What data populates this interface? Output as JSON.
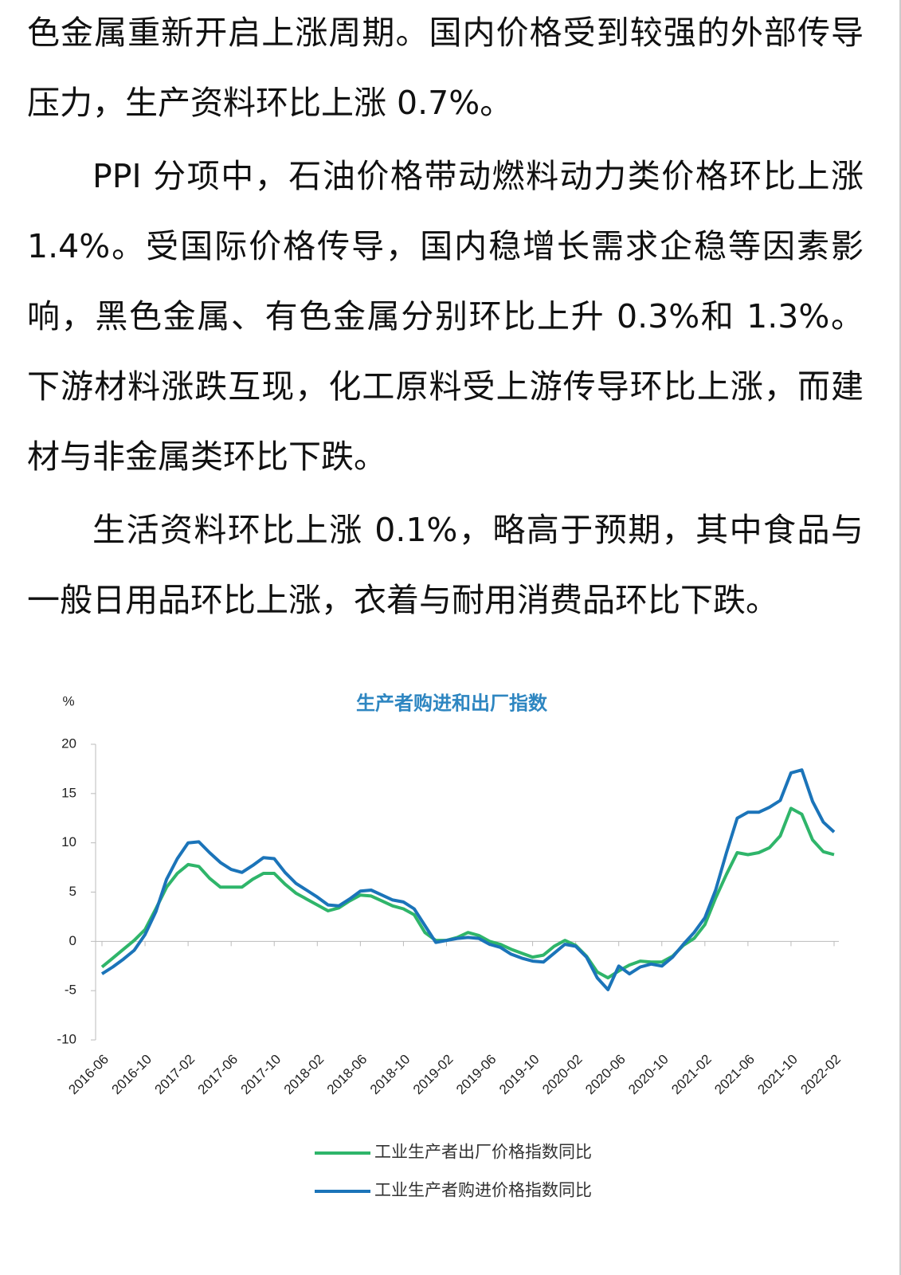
{
  "paragraphs": [
    {
      "text": "色金属重新开启上涨周期。国内价格受到较强的外部传导压力，生产资料环比上涨 0.7%。",
      "indent": false
    },
    {
      "text": "PPI 分项中，石油价格带动燃料动力类价格环比上涨 1.4%。受国际价格传导，国内稳增长需求企稳等因素影响，黑色金属、有色金属分别环比上升 0.3%和 1.3%。下游材料涨跌互现，化工原料受上游传导环比上涨，而建材与非金属类环比下跌。",
      "indent": true
    },
    {
      "text": "生活资料环比上涨 0.1%，略高于预期，其中食品与一般日用品环比上涨，衣着与耐用消费品环比下跌。",
      "indent": true
    }
  ],
  "chart_data": {
    "type": "line",
    "title": "生产者购进和出厂指数",
    "y_label": "%",
    "categories": [
      "2016-06",
      null,
      null,
      null,
      "2016-10",
      null,
      null,
      null,
      "2017-02",
      null,
      null,
      null,
      "2017-06",
      null,
      null,
      null,
      "2017-10",
      null,
      null,
      null,
      "2018-02",
      null,
      null,
      null,
      "2018-06",
      null,
      null,
      null,
      "2018-10",
      null,
      null,
      null,
      "2019-02",
      null,
      null,
      null,
      "2019-06",
      null,
      null,
      null,
      "2019-10",
      null,
      null,
      null,
      "2020-02",
      null,
      null,
      null,
      "2020-06",
      null,
      null,
      null,
      "2020-10",
      null,
      null,
      null,
      "2021-02",
      null,
      null,
      null,
      "2021-06",
      null,
      null,
      null,
      "2021-10",
      null,
      null,
      null,
      "2022-02"
    ],
    "series": [
      {
        "name": "工业生产者出厂价格指数同比",
        "color": "#2fb56a",
        "values": [
          -2.6,
          -1.7,
          -0.8,
          0.1,
          1.2,
          3.3,
          5.5,
          6.9,
          7.8,
          7.6,
          6.4,
          5.5,
          5.5,
          5.5,
          6.3,
          6.9,
          6.9,
          5.8,
          4.9,
          4.3,
          3.7,
          3.1,
          3.4,
          4.1,
          4.7,
          4.6,
          4.1,
          3.6,
          3.3,
          2.7,
          0.9,
          0.1,
          0.1,
          0.4,
          0.9,
          0.6,
          0.0,
          -0.3,
          -0.8,
          -1.2,
          -1.6,
          -1.4,
          -0.5,
          0.1,
          -0.4,
          -1.5,
          -3.1,
          -3.7,
          -3.0,
          -2.4,
          -2.0,
          -2.1,
          -2.1,
          -1.5,
          -0.4,
          0.3,
          1.7,
          4.4,
          6.8,
          9.0,
          8.8,
          9.0,
          9.5,
          10.7,
          13.5,
          12.9,
          10.3,
          9.1,
          8.8
        ]
      },
      {
        "name": "工业生产者购进价格指数同比",
        "color": "#1b74b9",
        "values": [
          -3.3,
          -2.6,
          -1.8,
          -0.9,
          0.7,
          3.0,
          6.3,
          8.4,
          10.0,
          10.1,
          9.0,
          8.0,
          7.3,
          7.0,
          7.7,
          8.5,
          8.4,
          7.0,
          5.9,
          5.2,
          4.5,
          3.7,
          3.6,
          4.3,
          5.1,
          5.2,
          4.7,
          4.2,
          4.0,
          3.3,
          1.6,
          -0.1,
          0.1,
          0.3,
          0.4,
          0.3,
          -0.3,
          -0.6,
          -1.3,
          -1.7,
          -2.0,
          -2.1,
          -1.2,
          -0.3,
          -0.5,
          -1.6,
          -3.7,
          -4.9,
          -2.5,
          -3.3,
          -2.6,
          -2.3,
          -2.5,
          -1.6,
          -0.3,
          0.9,
          2.4,
          5.2,
          9.0,
          12.5,
          13.1,
          13.1,
          13.6,
          14.3,
          17.1,
          17.4,
          14.2,
          12.1,
          11.1
        ]
      }
    ],
    "ylim": [
      -10,
      20
    ],
    "yticks": [
      -10,
      -5,
      0,
      5,
      10,
      15,
      20
    ],
    "grid": false
  }
}
